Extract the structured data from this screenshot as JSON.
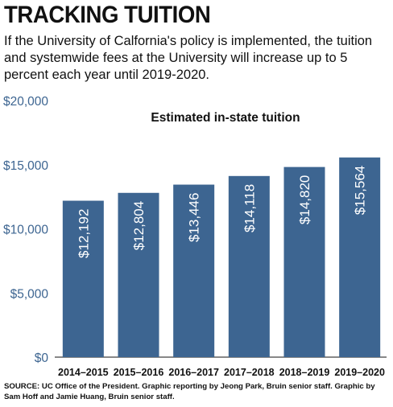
{
  "header": {
    "headline": "TRACKING TUITION",
    "dek": "If the University of Calfornia's policy is implemented, the tuition and systemwide fees at the University will increase up to 5 percent each year until 2019-2020."
  },
  "source": "SOURCE: UC Office of the President. Graphic reporting by Jeong Park, Bruin senior staff. Graphic by Sam Hoff and Jamie Huang, Bruin senior staff.",
  "chart_data": {
    "type": "bar",
    "title": "Estimated in-state tuition",
    "categories": [
      "2014–2015",
      "2015–2016",
      "2016–2017",
      "2017–2018",
      "2018–2019",
      "2019–2020"
    ],
    "values": [
      12192,
      12804,
      13446,
      14118,
      14820,
      15564
    ],
    "data_labels": [
      "$12,192",
      "$12,804",
      "$13,446",
      "$14,118",
      "$14,820",
      "$15,564"
    ],
    "y_ticks": [
      0,
      5000,
      10000,
      15000,
      20000
    ],
    "y_tick_labels": [
      "$0",
      "$5,000",
      "$10,000",
      "$15,000",
      "$20,000"
    ],
    "ylim": [
      0,
      20000
    ],
    "xlabel": "",
    "ylabel": "",
    "grid": false,
    "colors": {
      "bar": "#3d6591",
      "axis_labels": "#3d6591",
      "text": "#111111",
      "bar_label": "#ffffff"
    }
  }
}
